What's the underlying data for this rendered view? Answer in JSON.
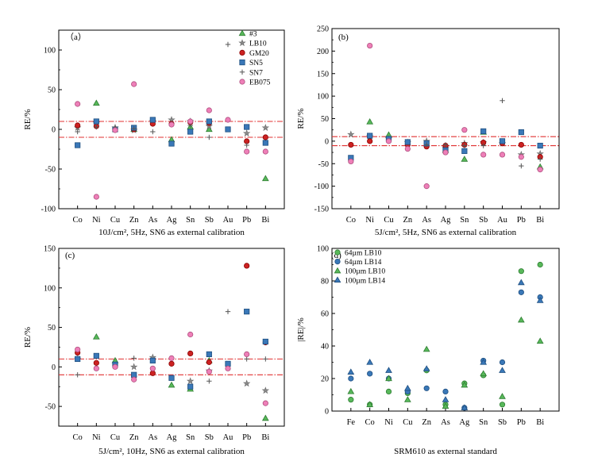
{
  "figure": {
    "panels_note": "Four-panel scatter figure of relative error by element"
  },
  "marker_styles": {
    "#3": {
      "shape": "triangle-up",
      "fill": "#58b85a",
      "stroke": "#2e7d32"
    },
    "LB10": {
      "shape": "star",
      "fill": "#8a8a8a",
      "stroke": "#666666"
    },
    "GM20": {
      "shape": "circle",
      "fill": "#cc2222",
      "stroke": "#8b0000"
    },
    "SN5": {
      "shape": "square",
      "fill": "#3a78b8",
      "stroke": "#1f4f80"
    },
    "SN7": {
      "shape": "plus",
      "fill": "none",
      "stroke": "#555555"
    },
    "EB075": {
      "shape": "circle",
      "fill": "#ee7fb8",
      "stroke": "#b0507f"
    },
    "64µm LB10": {
      "shape": "circle",
      "fill": "#58b85a",
      "stroke": "#2e7d32"
    },
    "64µm LB14": {
      "shape": "circle",
      "fill": "#3a78b8",
      "stroke": "#1f4f80"
    },
    "100µm LB10": {
      "shape": "triangle-up",
      "fill": "#58b85a",
      "stroke": "#2e7d32"
    },
    "100µm LB14": {
      "shape": "triangle-up",
      "fill": "#3a78b8",
      "stroke": "#1f4f80"
    }
  },
  "reference_line_color": "#e03030",
  "chart_data": [
    {
      "id": "a",
      "type": "scatter",
      "panel_label": "（a）",
      "xlabel": "10J/cm², 5Hz, SN6 as external calibration",
      "ylabel": "RE/%",
      "categories": [
        "Co",
        "Ni",
        "Cu",
        "Zn",
        "As",
        "Ag",
        "Sn",
        "Sb",
        "Au",
        "Pb",
        "Bi"
      ],
      "ylim": [
        -100,
        125
      ],
      "yticks": [
        -100,
        -50,
        0,
        50,
        100
      ],
      "ref_lines": [
        10,
        -10
      ],
      "legend": {
        "position": "top-right",
        "entries": [
          "#3",
          "LB10",
          "GM20",
          "SN5",
          "SN7",
          "EB075"
        ]
      },
      "series": [
        {
          "name": "#3",
          "values": [
            null,
            33,
            null,
            0,
            null,
            -13,
            3,
            0,
            null,
            null,
            -62
          ]
        },
        {
          "name": "LB10",
          "values": [
            2,
            8,
            2,
            -1,
            10,
            12,
            10,
            4,
            null,
            -5,
            2
          ]
        },
        {
          "name": "GM20",
          "values": [
            5,
            4,
            0,
            0,
            7,
            7,
            9,
            8,
            null,
            -15,
            -10
          ]
        },
        {
          "name": "SN5",
          "values": [
            -20,
            10,
            0,
            2,
            12,
            -18,
            -3,
            10,
            0,
            3,
            -17
          ]
        },
        {
          "name": "SN7",
          "values": [
            -3,
            3,
            3,
            1,
            -3,
            6,
            5,
            -10,
            107,
            -20,
            -28
          ]
        },
        {
          "name": "EB075",
          "values": [
            32,
            -85,
            -1,
            57,
            null,
            6,
            10,
            24,
            12,
            -28,
            -28
          ]
        }
      ]
    },
    {
      "id": "b",
      "type": "scatter",
      "panel_label": "(b)",
      "xlabel": "5J/cm², 5Hz, SN6 as external calibration",
      "ylabel": "RE/%",
      "categories": [
        "Co",
        "Ni",
        "Cu",
        "Zn",
        "As",
        "Ag",
        "Sn",
        "Sb",
        "Au",
        "Pb",
        "Bi"
      ],
      "ylim": [
        -150,
        250
      ],
      "yticks": [
        -150,
        -100,
        -50,
        0,
        50,
        100,
        150,
        200,
        250
      ],
      "ref_lines": [
        10,
        -10
      ],
      "series": [
        {
          "name": "#3",
          "values": [
            null,
            43,
            14,
            null,
            null,
            -20,
            -40,
            20,
            null,
            null,
            -57
          ]
        },
        {
          "name": "LB10",
          "values": [
            15,
            10,
            5,
            -3,
            0,
            -15,
            -5,
            -3,
            -5,
            -30,
            -28
          ]
        },
        {
          "name": "GM20",
          "values": [
            -8,
            0,
            2,
            -8,
            -12,
            -10,
            -8,
            -3,
            -5,
            -8,
            -35
          ]
        },
        {
          "name": "SN5",
          "values": [
            -37,
            12,
            5,
            -2,
            -5,
            -20,
            -22,
            22,
            0,
            20,
            -10
          ]
        },
        {
          "name": "SN7",
          "values": [
            null,
            null,
            null,
            null,
            -8,
            -8,
            -10,
            -10,
            90,
            -55,
            -40
          ]
        },
        {
          "name": "EB075",
          "values": [
            -45,
            212,
            0,
            -17,
            -100,
            -25,
            25,
            -30,
            -30,
            -35,
            -63
          ]
        }
      ]
    },
    {
      "id": "c",
      "type": "scatter",
      "panel_label": "(c)",
      "xlabel": "5J/cm², 10Hz, SN6 as external calibration",
      "ylabel": "RE/%",
      "categories": [
        "Co",
        "Ni",
        "Cu",
        "Zn",
        "As",
        "Ag",
        "Sn",
        "Sb",
        "Au",
        "Pb",
        "Bi"
      ],
      "ylim": [
        -75,
        150
      ],
      "yticks": [
        -50,
        0,
        50,
        100,
        150
      ],
      "ref_lines": [
        10,
        -10
      ],
      "series": [
        {
          "name": "#3",
          "values": [
            null,
            38,
            8,
            null,
            null,
            -23,
            -28,
            8,
            null,
            null,
            -65
          ]
        },
        {
          "name": "LB10",
          "values": [
            10,
            null,
            null,
            0,
            12,
            null,
            -18,
            -5,
            null,
            -21,
            -30
          ]
        },
        {
          "name": "GM20",
          "values": [
            18,
            5,
            2,
            -12,
            -8,
            4,
            17,
            6,
            null,
            128,
            31
          ]
        },
        {
          "name": "SN5",
          "values": [
            10,
            14,
            3,
            -10,
            8,
            -14,
            -25,
            16,
            4,
            70,
            32
          ]
        },
        {
          "name": "SN7",
          "values": [
            -10,
            null,
            null,
            11,
            null,
            null,
            null,
            -18,
            70,
            10,
            10
          ]
        },
        {
          "name": "EB075",
          "values": [
            22,
            -2,
            0,
            -16,
            -2,
            11,
            41,
            -6,
            -2,
            16,
            -46
          ]
        }
      ]
    },
    {
      "id": "d",
      "type": "scatter",
      "panel_label": "(d)",
      "xlabel": "SRM610 as external standard",
      "ylabel": "|RE|/%",
      "categories": [
        "Fe",
        "Co",
        "Ni",
        "Cu",
        "Zn",
        "As",
        "Ag",
        "Sn",
        "Sb",
        "Pb",
        "Bi"
      ],
      "ylim": [
        0,
        100
      ],
      "yticks": [
        0,
        20,
        40,
        60,
        80,
        100
      ],
      "ref_lines": [],
      "legend": {
        "position": "top-left",
        "entries": [
          "64µm LB10",
          "64µm LB14",
          "100µm LB10",
          "100µm LB14"
        ]
      },
      "series": [
        {
          "name": "64µm LB10",
          "values": [
            7,
            4,
            12,
            11,
            25,
            4,
            17,
            22,
            4,
            86,
            90
          ]
        },
        {
          "name": "64µm LB14",
          "values": [
            20,
            23,
            20,
            12,
            14,
            12,
            2,
            31,
            30,
            73,
            70
          ]
        },
        {
          "name": "100µm LB10",
          "values": [
            12,
            4,
            20,
            7,
            38,
            3,
            16,
            23,
            9,
            56,
            43
          ]
        },
        {
          "name": "100µm LB14",
          "values": [
            24,
            30,
            25,
            14,
            26,
            7,
            2,
            30,
            25,
            79,
            68
          ]
        }
      ]
    }
  ]
}
